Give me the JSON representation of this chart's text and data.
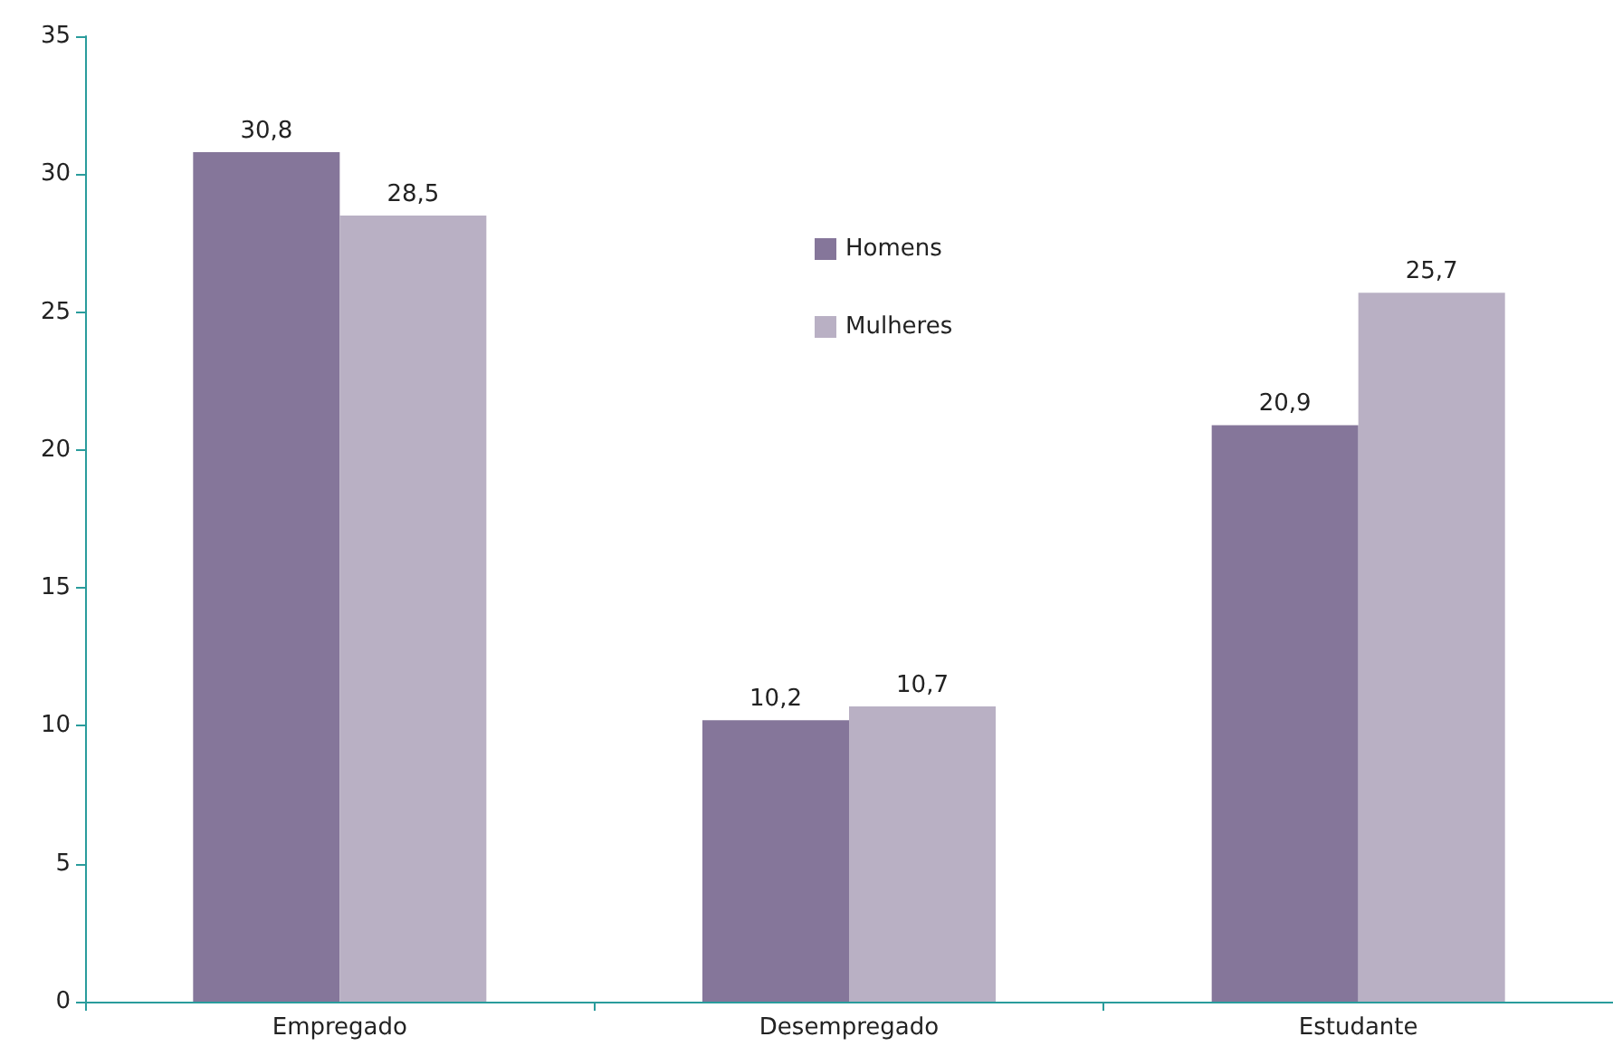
{
  "chart_data": {
    "type": "bar",
    "categories": [
      "Empregado",
      "Desempregado",
      "Estudante"
    ],
    "series": [
      {
        "name": "Homens",
        "color": "#85769a",
        "values": [
          30.8,
          10.2,
          20.9
        ],
        "value_labels": [
          "30,8",
          "10,2",
          "20,9"
        ]
      },
      {
        "name": "Mulheres",
        "color": "#b9b0c4",
        "values": [
          28.5,
          10.7,
          25.7
        ],
        "value_labels": [
          "28,5",
          "10,7",
          "25,7"
        ]
      }
    ],
    "ylim": [
      0,
      35
    ],
    "yticks": [
      0,
      5,
      10,
      15,
      20,
      25,
      30,
      35
    ],
    "grid": false,
    "legend": "top center"
  }
}
